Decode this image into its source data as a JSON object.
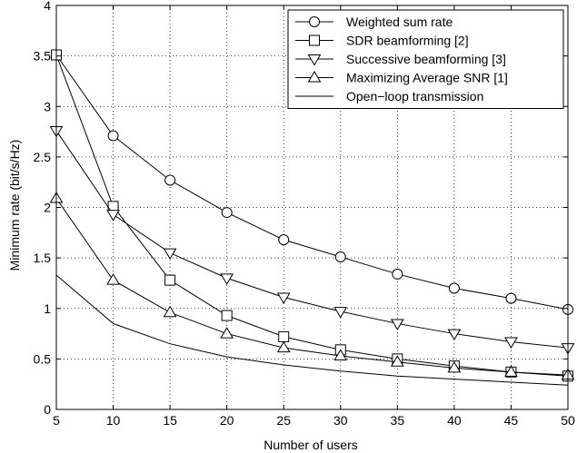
{
  "chart_data": {
    "type": "line",
    "title": "",
    "xlabel": "Number of users",
    "ylabel": "Minimum rate (bit/s/Hz)",
    "xlim": [
      5,
      50
    ],
    "ylim": [
      0,
      4
    ],
    "xticks": [
      5,
      10,
      15,
      20,
      25,
      30,
      35,
      40,
      45,
      50
    ],
    "xtick_labels": [
      "5",
      "10",
      "15",
      "20",
      "25",
      "30",
      "35",
      "40",
      "45",
      "50"
    ],
    "yticks": [
      0,
      0.5,
      1,
      1.5,
      2,
      2.5,
      3,
      3.5,
      4
    ],
    "ytick_labels": [
      "0",
      "0.5",
      "1",
      "1.5",
      "2",
      "2.5",
      "3",
      "3.5",
      "4"
    ],
    "grid": true,
    "grid_style": "dotted",
    "legend_position": "top-right",
    "x": [
      5,
      10,
      15,
      20,
      25,
      30,
      35,
      40,
      45,
      50
    ],
    "series": [
      {
        "name": "Weighted sum rate",
        "marker": "circle",
        "color": "#000000",
        "values": [
          3.51,
          2.71,
          2.27,
          1.95,
          1.68,
          1.51,
          1.34,
          1.2,
          1.1,
          0.99
        ]
      },
      {
        "name": "SDR beamforming [2]",
        "marker": "square",
        "color": "#000000",
        "values": [
          3.51,
          2.01,
          1.28,
          0.93,
          0.72,
          0.59,
          0.5,
          0.43,
          0.37,
          0.33
        ]
      },
      {
        "name": "Successive beamforming [3]",
        "marker": "triangle-down",
        "color": "#000000",
        "values": [
          2.76,
          1.93,
          1.55,
          1.3,
          1.11,
          0.97,
          0.85,
          0.75,
          0.67,
          0.61
        ]
      },
      {
        "name": "Maximizing Average SNR [1]",
        "marker": "triangle-up",
        "color": "#000000",
        "values": [
          2.09,
          1.28,
          0.96,
          0.75,
          0.61,
          0.53,
          0.47,
          0.41,
          0.37,
          0.34
        ]
      },
      {
        "name": "Open−loop transmission",
        "marker": "none",
        "color": "#000000",
        "values": [
          1.33,
          0.85,
          0.65,
          0.52,
          0.44,
          0.38,
          0.33,
          0.3,
          0.27,
          0.24
        ]
      }
    ]
  }
}
